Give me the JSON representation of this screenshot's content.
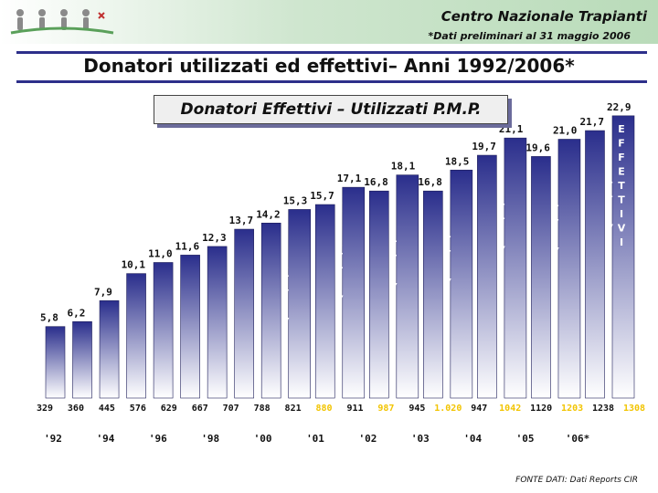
{
  "header": {
    "organization": "Centro Nazionale Trapianti",
    "note": "*Dati preliminari al 31 maggio 2006"
  },
  "slide_title": "Donatori utilizzati ed effettivi– Anni 1992/2006*",
  "source": "FONTE DATI: Dati Reports CIR",
  "colors": {
    "bar_top": "#2a2e8c",
    "bar_bottom": "#ffffff",
    "highlight_count": "#f2c400",
    "rule": "#2d2f8a"
  },
  "chart_data": {
    "type": "bar",
    "title": "Donatori Effettivi – Utilizzati P.M.P.",
    "series": [
      {
        "name": "P.M.P.",
        "values": [
          5.8,
          6.2,
          7.9,
          10.1,
          11.0,
          11.6,
          12.3,
          13.7,
          14.2,
          15.3,
          15.7,
          17.1,
          16.8,
          18.1,
          16.8,
          18.5,
          19.7,
          21.1,
          19.6,
          21.0,
          21.7,
          22.9
        ],
        "labels": [
          "5,8",
          "6,2",
          "7,9",
          "10,1",
          "11,0",
          "11,6",
          "12,3",
          "13,7",
          "14,2",
          "15,3",
          "15,7",
          "17,1",
          "16,8",
          "18,1",
          "16,8",
          "18,5",
          "19,7",
          "21,1",
          "19,6",
          "21,0",
          "21,7",
          "22,9"
        ]
      }
    ],
    "counts": [
      "329",
      "360",
      "445",
      "576",
      "629",
      "667",
      "707",
      "788",
      "821",
      "880",
      "911",
      "987",
      "945",
      "1.020",
      "947",
      "1042",
      "1120",
      "1203",
      "1238",
      "1308"
    ],
    "highlighted_counts": [
      "880",
      "987",
      "1.020",
      "1042",
      "1203",
      "1308"
    ],
    "effettivi_marker": [
      "E",
      "F",
      "F",
      "E",
      "T",
      "T",
      "I",
      "V",
      "I"
    ],
    "x_tick_labels": [
      "'92",
      "'94",
      "'96",
      "'98",
      "'00",
      "'01",
      "'02",
      "'03",
      "'04",
      "'05",
      "'06*"
    ],
    "ylim": [
      0,
      24
    ],
    "grid": false
  }
}
